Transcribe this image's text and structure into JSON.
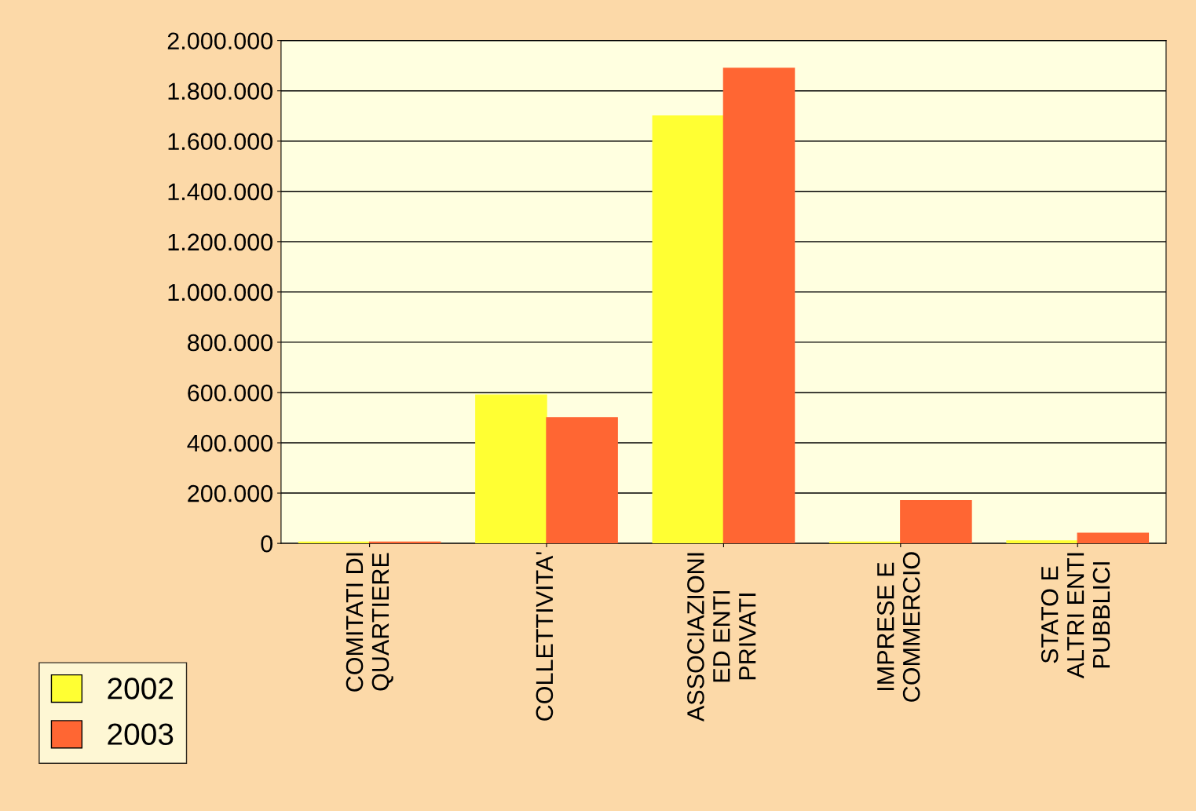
{
  "chart_data": {
    "type": "bar",
    "categories": [
      "COMITATI DI\nQUARTIERE",
      "COLLETTIVITA'",
      "ASSOCIAZIONI\nED ENTI\nPRIVATI",
      "IMPRESE E\nCOMMERCIO",
      "STATO E\nALTRI ENTI\nPUBBLICI"
    ],
    "series": [
      {
        "name": "2002",
        "color": "#ffff33",
        "values": [
          5000,
          590000,
          1700000,
          5000,
          10000
        ]
      },
      {
        "name": "2003",
        "color": "#ff6633",
        "values": [
          5000,
          500000,
          1890000,
          170000,
          40000
        ]
      }
    ],
    "ylim": [
      0,
      2000000
    ],
    "yticks": [
      0,
      {
        "value": 200000,
        "label": "200.000"
      },
      {
        "value": 400000,
        "label": "400.000"
      },
      {
        "value": 600000,
        "label": "600.000"
      },
      {
        "value": 800000,
        "label": "800.000"
      },
      {
        "value": 1000000,
        "label": "1.000.000"
      },
      {
        "value": 1200000,
        "label": "1.200.000"
      },
      {
        "value": 1400000,
        "label": "1.400.000"
      },
      {
        "value": 1600000,
        "label": "1.600.000"
      },
      {
        "value": 1800000,
        "label": "1.800.000"
      },
      {
        "value": 2000000,
        "label": "2.000.000"
      }
    ],
    "grid": "y",
    "legend": "bottom left"
  }
}
